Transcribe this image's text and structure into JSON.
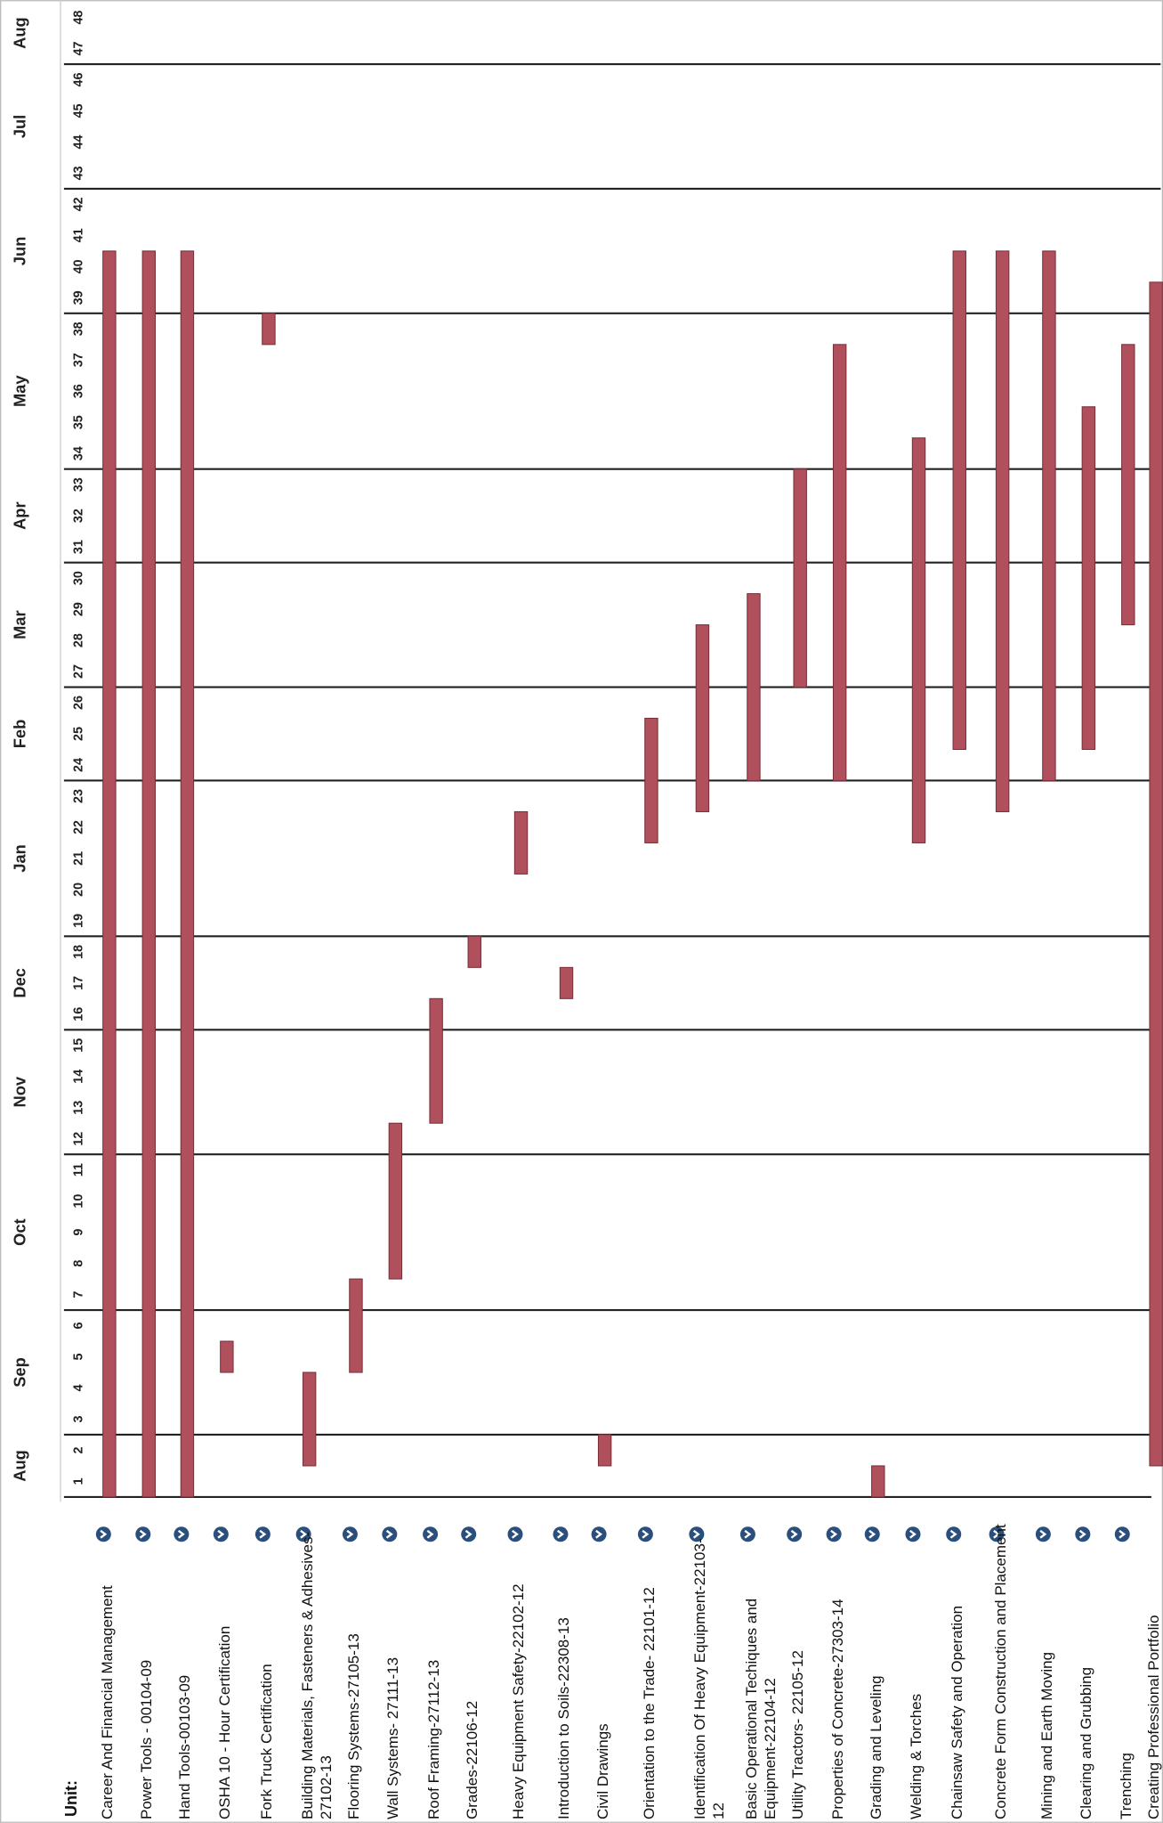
{
  "chart_data": {
    "type": "gantt",
    "axis_label": "Unit:",
    "categories": [
      "Career And Financial Management",
      "Power Tools - 00104-09",
      "Hand Tools-00103-09",
      "OSHA 10 - Hour Certification",
      "Fork Truck Certification",
      "Building Materials, Fasteners & Adhesives-27102-13",
      "Flooring Systems-27105-13",
      "Wall Systems- 27111-13",
      "Roof Framing-27112-13",
      "Grades-22106-12",
      "Heavy Equipment Safety-22102-12",
      "Introduction to Soils-22308-13",
      "Civil Drawings",
      "Orientation to the Trade- 22101-12",
      "Identification Of Heavy Equipment-22103-12",
      "Basic Operational Techiques and Equipment-22104-12",
      "Utility Tractors- 22105-12",
      "Properties of Concrete-27303-14",
      "Grading and Leveling",
      "Welding & Torches",
      "Chainsaw Safety and Operation",
      "Concrete Form Construction and Placement",
      "Mining and Earth Moving",
      "Clearing and Grubbing",
      "Trenching",
      "Creating Professional Portfolio"
    ],
    "start": [
      1,
      1,
      1,
      5,
      38,
      2,
      5,
      8,
      13,
      18,
      21,
      17,
      2,
      22,
      23,
      24,
      27,
      24,
      1,
      22,
      25,
      23,
      24,
      25,
      29,
      2
    ],
    "end": [
      40,
      40,
      40,
      5,
      38,
      4,
      7,
      12,
      16,
      18,
      22,
      17,
      2,
      25,
      28,
      29,
      33,
      37,
      1,
      34,
      40,
      40,
      40,
      35,
      37,
      39
    ],
    "color": "#b0505c",
    "months": [
      {
        "label": "Aug",
        "start": 1,
        "end": 2
      },
      {
        "label": "Sep",
        "start": 3,
        "end": 6
      },
      {
        "label": "Oct",
        "start": 7,
        "end": 11
      },
      {
        "label": "Nov",
        "start": 12,
        "end": 15
      },
      {
        "label": "Dec",
        "start": 16,
        "end": 18
      },
      {
        "label": "Jan",
        "start": 19,
        "end": 23
      },
      {
        "label": "Feb",
        "start": 24,
        "end": 26
      },
      {
        "label": "Mar",
        "start": 27,
        "end": 30
      },
      {
        "label": "Apr",
        "start": 31,
        "end": 33
      },
      {
        "label": "May",
        "start": 34,
        "end": 38
      },
      {
        "label": "Jun",
        "start": 39,
        "end": 42
      },
      {
        "label": "Jul",
        "start": 43,
        "end": 46
      },
      {
        "label": "Aug",
        "start": 47,
        "end": 48
      }
    ],
    "ylim": [
      0.5,
      48.5
    ],
    "yticks": [
      1,
      2,
      3,
      4,
      5,
      6,
      7,
      8,
      9,
      10,
      11,
      12,
      13,
      14,
      15,
      16,
      17,
      18,
      19,
      20,
      21,
      22,
      23,
      24,
      25,
      26,
      27,
      28,
      29,
      30,
      31,
      32,
      33,
      34,
      35,
      36,
      37,
      38,
      39,
      40,
      41,
      42,
      43,
      44,
      45,
      46,
      47,
      48
    ]
  }
}
